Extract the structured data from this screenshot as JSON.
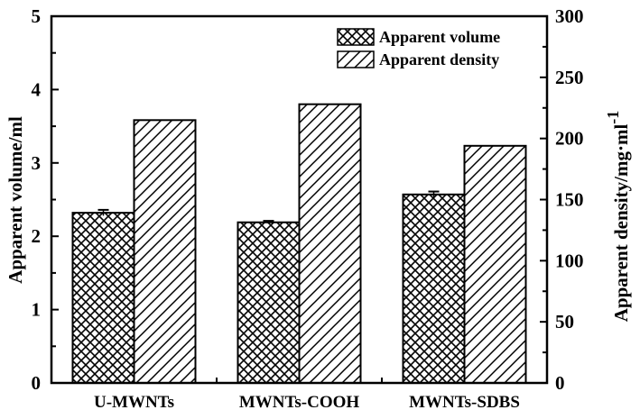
{
  "chart_data": {
    "type": "bar",
    "title": "",
    "categories": [
      "U-MWNTs",
      "MWNTs-COOH",
      "MWNTs-SDBS"
    ],
    "series": [
      {
        "name": "Apparent volume",
        "axis": "left",
        "pattern": "crosshatch",
        "values": [
          2.32,
          2.19,
          2.57
        ],
        "errors": [
          0.04,
          0.02,
          0.04
        ]
      },
      {
        "name": "Apparent density",
        "axis": "right",
        "pattern": "diagonal",
        "values": [
          215,
          228,
          194
        ]
      }
    ],
    "xlabel": "",
    "ylabel": "Apparent volume/ml",
    "ylabel_right": "Apparent density/mg·ml",
    "ylabel_right_superscript": "-1",
    "ylim": [
      0,
      5
    ],
    "ylim_right": [
      0,
      300
    ],
    "yticks": [
      "0",
      "1",
      "2",
      "3",
      "4",
      "5"
    ],
    "yticks_right": [
      "0",
      "50",
      "100",
      "150",
      "200",
      "250",
      "300"
    ],
    "grid": false,
    "legend_position": "upper right"
  },
  "legend": {
    "items": [
      {
        "label": "Apparent volume"
      },
      {
        "label": "Apparent density"
      }
    ]
  }
}
